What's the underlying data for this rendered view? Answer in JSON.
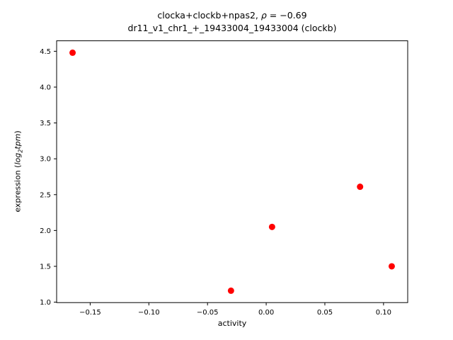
{
  "figure": {
    "title_line1": {
      "prefix": "clocka+clockb+npas2, ",
      "rho": "ρ",
      "eq": " = −0.69"
    },
    "title_line2": "dr11_v1_chr1_+_19433004_19433004 (clockb)",
    "xlabel": "activity",
    "ylabel": {
      "prefix": "expression (",
      "math1": "log",
      "sub": "2",
      "math2": "tpm",
      "suffix": ")"
    }
  },
  "chart_data": {
    "type": "scatter",
    "title": "clocka+clockb+npas2, ρ = −0.69",
    "subtitle": "dr11_v1_chr1_+_19433004_19433004 (clockb)",
    "rho": -0.69,
    "xlabel": "activity",
    "ylabel": "expression (log2 tpm)",
    "points": [
      [
        -0.165,
        4.48
      ],
      [
        -0.03,
        1.16
      ],
      [
        0.005,
        2.05
      ],
      [
        0.08,
        2.61
      ],
      [
        0.107,
        1.5
      ]
    ],
    "xlim": [
      -0.1786,
      0.1206
    ],
    "ylim": [
      0.994,
      4.646
    ],
    "xticks": [
      {
        "v": -0.15,
        "label": "−0.15"
      },
      {
        "v": -0.1,
        "label": "−0.10"
      },
      {
        "v": -0.05,
        "label": "−0.05"
      },
      {
        "v": 0.0,
        "label": "0.00"
      },
      {
        "v": 0.05,
        "label": "0.05"
      },
      {
        "v": 0.1,
        "label": "0.10"
      }
    ],
    "yticks": [
      {
        "v": 1.0,
        "label": "1.0"
      },
      {
        "v": 1.5,
        "label": "1.5"
      },
      {
        "v": 2.0,
        "label": "2.0"
      },
      {
        "v": 2.5,
        "label": "2.5"
      },
      {
        "v": 3.0,
        "label": "3.0"
      },
      {
        "v": 3.5,
        "label": "3.5"
      },
      {
        "v": 4.0,
        "label": "4.0"
      },
      {
        "v": 4.5,
        "label": "4.5"
      }
    ],
    "grid": false,
    "legend": null,
    "marker_color": "#ff0000",
    "marker_radius": 4.5,
    "spine_color": "#000000",
    "background_color": "#ffffff"
  }
}
